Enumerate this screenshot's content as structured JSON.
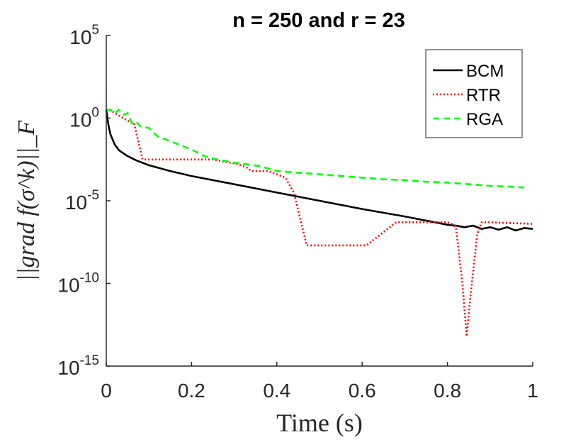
{
  "chart_data": {
    "type": "line",
    "title": "n = 250 and r = 23",
    "xlabel": "Time (s)",
    "ylabel": "||grad f(σ^k)||_F",
    "xlim": [
      0,
      1
    ],
    "ylim_log10": [
      -15,
      5
    ],
    "yscale": "log",
    "x_ticks": [
      {
        "value": 0,
        "label": "0"
      },
      {
        "value": 0.2,
        "label": "0.2"
      },
      {
        "value": 0.4,
        "label": "0.4"
      },
      {
        "value": 0.6,
        "label": "0.6"
      },
      {
        "value": 0.8,
        "label": "0.8"
      },
      {
        "value": 1,
        "label": "1"
      }
    ],
    "y_ticks": [
      {
        "exp": 5,
        "base": "10",
        "sup": "5"
      },
      {
        "exp": 0,
        "base": "10",
        "sup": "0"
      },
      {
        "exp": -5,
        "base": "10",
        "sup": "-5"
      },
      {
        "exp": -10,
        "base": "10",
        "sup": "-10"
      },
      {
        "exp": -15,
        "base": "10",
        "sup": "-15"
      }
    ],
    "legend_position": "top-right",
    "series": [
      {
        "name": "BCM",
        "color": "#000000",
        "style": "solid",
        "x": [
          0,
          0.005,
          0.01,
          0.02,
          0.03,
          0.05,
          0.07,
          0.1,
          0.15,
          0.2,
          0.3,
          0.4,
          0.5,
          0.6,
          0.7,
          0.8,
          0.82,
          0.84,
          0.86,
          0.88,
          0.9,
          0.92,
          0.94,
          0.96,
          0.98,
          1.0
        ],
        "log10_y": [
          0.5,
          -0.4,
          -1.0,
          -1.6,
          -1.95,
          -2.3,
          -2.55,
          -2.85,
          -3.2,
          -3.5,
          -4.0,
          -4.5,
          -5.0,
          -5.5,
          -5.95,
          -6.45,
          -6.5,
          -6.6,
          -6.5,
          -6.7,
          -6.6,
          -6.75,
          -6.6,
          -6.8,
          -6.65,
          -6.7
        ]
      },
      {
        "name": "RTR",
        "color": "#ff0000",
        "style": "dotted",
        "x": [
          0,
          0.01,
          0.02,
          0.04,
          0.06,
          0.065,
          0.085,
          0.1,
          0.2,
          0.25,
          0.31,
          0.33,
          0.34,
          0.37,
          0.38,
          0.42,
          0.44,
          0.47,
          0.5,
          0.55,
          0.61,
          0.68,
          0.8,
          0.81,
          0.82,
          0.835,
          0.845,
          0.855,
          0.87,
          0.88,
          0.9,
          1.0
        ],
        "log10_y": [
          0.5,
          0.5,
          0.3,
          0.0,
          -0.3,
          -0.3,
          -2.5,
          -2.5,
          -2.5,
          -2.5,
          -2.8,
          -3.0,
          -3.2,
          -3.2,
          -3.2,
          -3.6,
          -4.5,
          -7.7,
          -7.7,
          -7.7,
          -7.7,
          -6.3,
          -6.3,
          -6.4,
          -6.6,
          -10.0,
          -13.2,
          -10.5,
          -7.0,
          -6.3,
          -6.3,
          -6.4
        ]
      },
      {
        "name": "RGA",
        "color": "#00ff00",
        "style": "dashed",
        "x": [
          0,
          0.01,
          0.02,
          0.03,
          0.04,
          0.05,
          0.06,
          0.07,
          0.08,
          0.1,
          0.12,
          0.14,
          0.16,
          0.18,
          0.2,
          0.23,
          0.26,
          0.3,
          0.33,
          0.36,
          0.4,
          0.45,
          0.5,
          0.55,
          0.6,
          0.65,
          0.7,
          0.75,
          0.8,
          0.85,
          0.9,
          0.95,
          0.98
        ],
        "log10_y": [
          0.5,
          0.5,
          0.3,
          0.5,
          0.2,
          0.3,
          -0.3,
          -0.2,
          -0.5,
          -0.6,
          -1.1,
          -1.3,
          -1.5,
          -1.7,
          -1.9,
          -2.3,
          -2.5,
          -2.7,
          -2.8,
          -2.9,
          -3.2,
          -3.3,
          -3.4,
          -3.5,
          -3.6,
          -3.7,
          -3.75,
          -3.85,
          -3.9,
          -4.0,
          -4.1,
          -4.15,
          -4.2
        ]
      }
    ]
  }
}
